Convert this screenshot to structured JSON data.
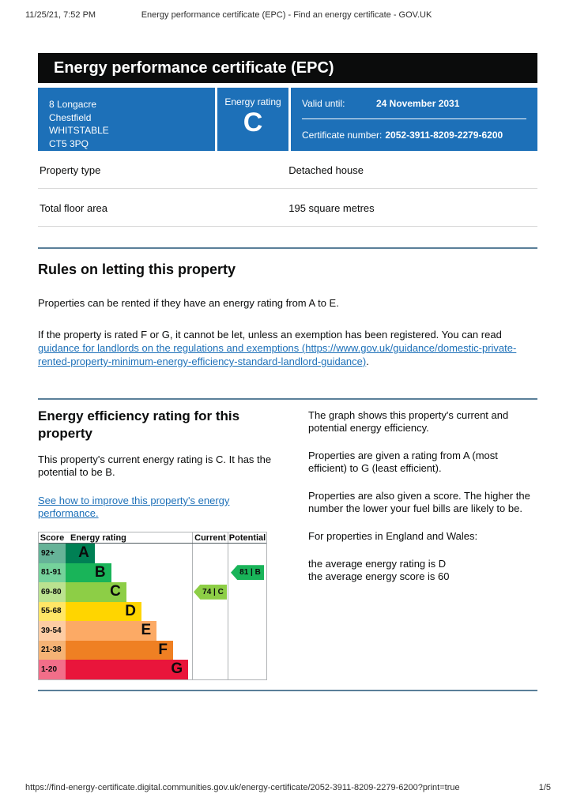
{
  "print_header": {
    "datetime": "11/25/21, 7:52 PM",
    "title": "Energy performance certificate (EPC) - Find an energy certificate - GOV.UK"
  },
  "banner": {
    "title": "Energy performance certificate (EPC)"
  },
  "summary": {
    "address_lines": [
      "8 Longacre",
      "Chestfield",
      "WHITSTABLE",
      "CT5 3PQ"
    ],
    "energy_rating_label": "Energy rating",
    "energy_rating": "C",
    "valid_until_label": "Valid until:",
    "valid_until": "24 November 2031",
    "certificate_number_label": "Certificate number:",
    "certificate_number": "2052-3911-8209-2279-6200",
    "panel_color": "#1d70b8"
  },
  "properties": [
    {
      "label": "Property type",
      "value": "Detached house"
    },
    {
      "label": "Total floor area",
      "value": "195 square metres"
    }
  ],
  "rules_section": {
    "heading": "Rules on letting this property",
    "para1": "Properties can be rented if they have an energy rating from A to E.",
    "para2_prefix": "If the property is rated F or G, it cannot be let, unless an exemption has been registered. You can read ",
    "para2_link": "guidance for landlords on the regulations and exemptions (https://www.gov.uk/guidance/domestic-private-rented-property-minimum-energy-efficiency-standard-landlord-guidance)",
    "para2_suffix": "."
  },
  "rating_section": {
    "heading": "Energy efficiency rating for this property",
    "para1": "This property's current energy rating is C. It has the potential to be B.",
    "improve_link": "See how to improve this property's energy performance.",
    "right_paras": [
      "The graph shows this property's current and potential energy efficiency.",
      "Properties are given a rating from A (most efficient) to G (least efficient).",
      "Properties are also given a score. The higher the number the lower your fuel bills are likely to be.",
      "For properties in England and Wales:"
    ],
    "right_list": [
      "the average energy rating is D",
      "the average energy score is 60"
    ]
  },
  "chart_data": {
    "type": "bar",
    "title": "Energy efficiency rating graph",
    "columns": [
      "Score",
      "Energy rating",
      "Current",
      "Potential"
    ],
    "bands": [
      {
        "score": "92+",
        "letter": "A",
        "color": "#008054",
        "tint": "#66b398",
        "bar_pct": 23
      },
      {
        "score": "81-91",
        "letter": "B",
        "color": "#19b459",
        "tint": "#75d29b",
        "bar_pct": 36
      },
      {
        "score": "69-80",
        "letter": "C",
        "color": "#8dce46",
        "tint": "#bbe290",
        "bar_pct": 48
      },
      {
        "score": "55-68",
        "letter": "D",
        "color": "#ffd500",
        "tint": "#ffe666",
        "bar_pct": 60
      },
      {
        "score": "39-54",
        "letter": "E",
        "color": "#fcaa65",
        "tint": "#fdcca3",
        "bar_pct": 72
      },
      {
        "score": "21-38",
        "letter": "F",
        "color": "#ef8023",
        "tint": "#f5b375",
        "bar_pct": 85
      },
      {
        "score": "1-20",
        "letter": "G",
        "color": "#e9153b",
        "tint": "#f26e89",
        "bar_pct": 97
      }
    ],
    "current": {
      "score": 74,
      "letter": "C",
      "label": "74 | C",
      "band_index": 2,
      "color": "#8dce46"
    },
    "potential": {
      "score": 81,
      "letter": "B",
      "label": "81 | B",
      "band_index": 1,
      "color": "#19b459"
    },
    "legend_position": "none",
    "grid": false
  },
  "print_footer": {
    "url": "https://find-energy-certificate.digital.communities.gov.uk/energy-certificate/2052-3911-8209-2279-6200?print=true",
    "page": "1/5"
  }
}
